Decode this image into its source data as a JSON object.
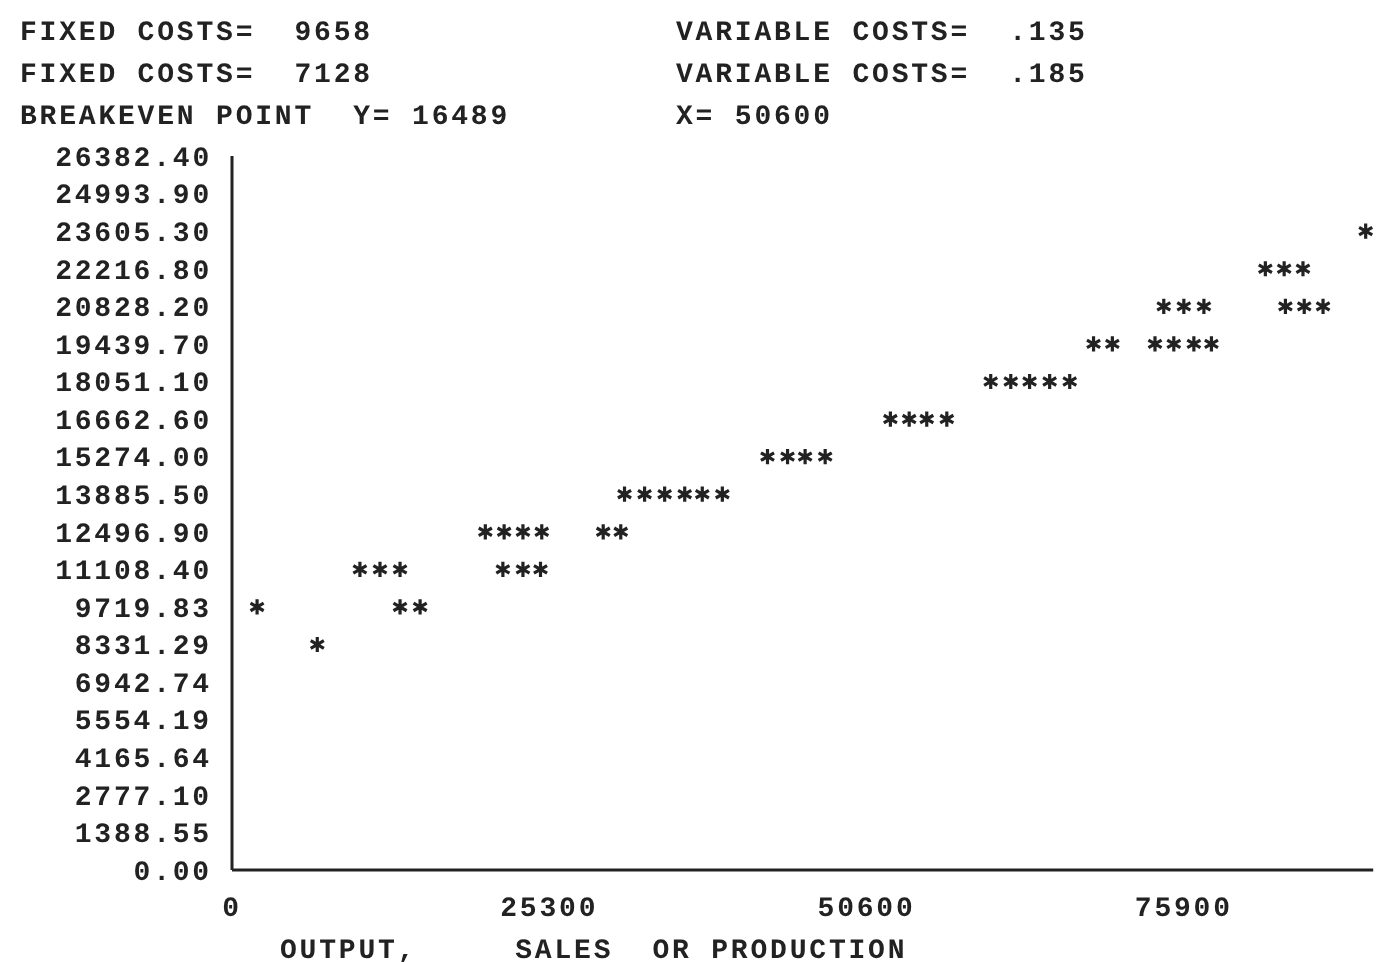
{
  "chart_data": {
    "type": "scatter",
    "annotations": [
      "FIXED COSTS=  9658",
      "VARIABLE COSTS=  .135",
      "FIXED COSTS=  7128",
      "VARIABLE COSTS=  .185",
      "BREAKEVEN POINT  Y= 16489",
      "X= 50600"
    ],
    "xlabel": "OUTPUT,     SALES  OR PRODUCTION",
    "xlim": [
      0,
      91000
    ],
    "xticks": [
      0,
      25300,
      50600,
      75900
    ],
    "ylim": [
      0,
      26382.4
    ],
    "yticks": [
      {
        "value": 0,
        "label": "0.00"
      },
      {
        "value": 1388.55,
        "label": "1388.55"
      },
      {
        "value": 2777.1,
        "label": "2777.10"
      },
      {
        "value": 4165.64,
        "label": "4165.64"
      },
      {
        "value": 5554.19,
        "label": "5554.19"
      },
      {
        "value": 6942.74,
        "label": "6942.74"
      },
      {
        "value": 8331.29,
        "label": "8331.29"
      },
      {
        "value": 9719.83,
        "label": "9719.83"
      },
      {
        "value": 11108.4,
        "label": "11108.40"
      },
      {
        "value": 12496.9,
        "label": "12496.90"
      },
      {
        "value": 13885.5,
        "label": "13885.50"
      },
      {
        "value": 15274,
        "label": "15274.00"
      },
      {
        "value": 16662.6,
        "label": "16662.60"
      },
      {
        "value": 18051.1,
        "label": "18051.10"
      },
      {
        "value": 19439.7,
        "label": "19439.70"
      },
      {
        "value": 20828.2,
        "label": "20828.20"
      },
      {
        "value": 22216.8,
        "label": "22216.80"
      },
      {
        "value": 23605.3,
        "label": "23605.30"
      },
      {
        "value": 24993.9,
        "label": "24993.90"
      },
      {
        "value": 26382.4,
        "label": "26382.40"
      }
    ],
    "marker": "cross",
    "grid": false,
    "series": [
      {
        "color": "#222222",
        "x": [
          2000,
          10200,
          11800,
          13400,
          20200,
          21700,
          23200,
          24700,
          31300,
          32900,
          34500,
          42700,
          44300,
          52500,
          54000,
          60500,
          62100,
          63600,
          73600,
          75100,
          76700,
          78100,
          84000,
          85500,
          87000
        ],
        "values": [
          9719.83,
          11108.4,
          11108.4,
          11108.4,
          12496.9,
          12496.9,
          12496.9,
          12496.9,
          13885.5,
          13885.5,
          13885.5,
          15274,
          15274,
          16662.6,
          16662.6,
          18051.1,
          18051.1,
          18051.1,
          19439.7,
          19439.7,
          19439.7,
          19439.7,
          20828.2,
          20828.2,
          20828.2
        ]
      },
      {
        "color": "#222222",
        "x": [
          6800,
          13400,
          15000,
          21600,
          23200,
          24600,
          29600,
          31000,
          36100,
          37500,
          39100,
          45700,
          47300,
          55400,
          57000,
          65200,
          66800,
          68700,
          70200,
          74300,
          75900,
          77500,
          82400,
          83900,
          85400,
          90400
        ],
        "values": [
          8331.29,
          9719.83,
          9719.83,
          11108.4,
          11108.4,
          11108.4,
          12496.9,
          12496.9,
          13885.5,
          13885.5,
          13885.5,
          15274,
          15274,
          16662.6,
          16662.6,
          18051.1,
          18051.1,
          19439.7,
          19439.7,
          20828.2,
          20828.2,
          20828.2,
          22216.8,
          22216.8,
          22216.8,
          23605.3
        ]
      }
    ]
  }
}
